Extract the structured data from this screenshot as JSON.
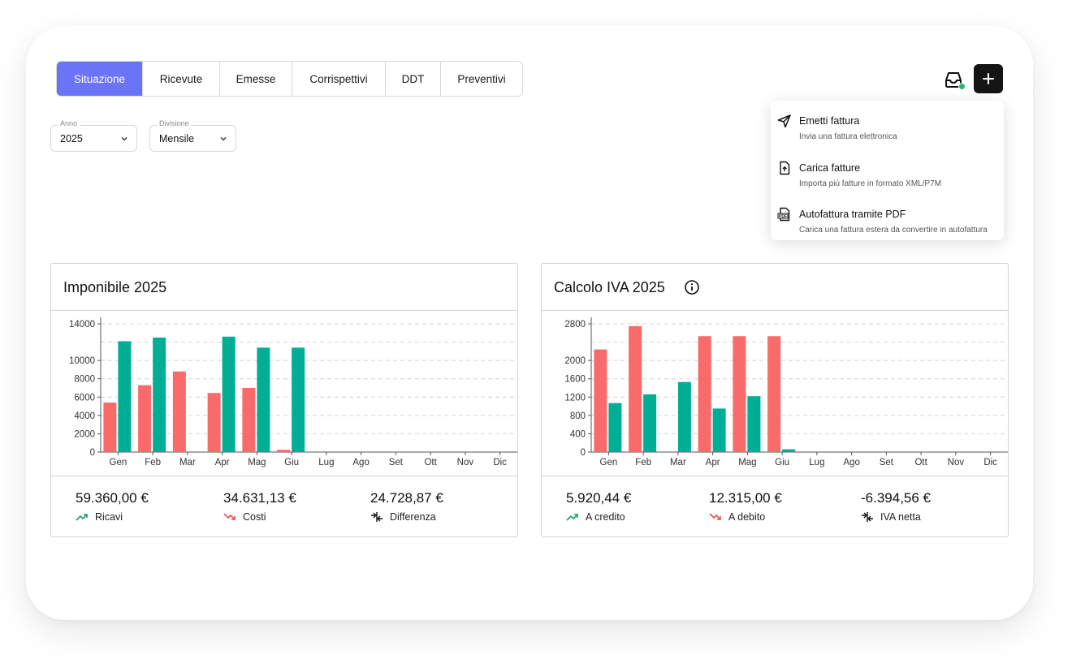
{
  "tabs": [
    {
      "label": "Situazione",
      "active": true
    },
    {
      "label": "Ricevute"
    },
    {
      "label": "Emesse"
    },
    {
      "label": "Corrispettivi"
    },
    {
      "label": "DDT"
    },
    {
      "label": "Preventivi"
    }
  ],
  "filters": {
    "year": {
      "label": "Anno",
      "value": "2025"
    },
    "division": {
      "label": "Divisione",
      "value": "Mensile"
    }
  },
  "actions": {
    "inbox_icon": "inbox-icon",
    "add_icon": "plus-icon",
    "status_color": "#22b66e"
  },
  "menu": {
    "items": [
      {
        "icon": "send-icon",
        "title": "Emetti fattura",
        "subtitle": "Invia una fattura elettronica"
      },
      {
        "icon": "file-upload-icon",
        "title": "Carica fatture",
        "subtitle": "Importa più fatture in formato XML/P7M"
      },
      {
        "icon": "pdf-file-icon",
        "title": "Autofattura tramite PDF",
        "subtitle": "Carica una fattura estera da convertire in autofattura"
      }
    ]
  },
  "colors": {
    "accent": "#6b73f6",
    "red": "#f96b6b",
    "teal": "#00ae96"
  },
  "panels": {
    "imponibile": {
      "title": "Imponibile 2025",
      "stats": [
        {
          "value": "59.360,00 €",
          "label": "Ricavi",
          "icon": "trending-up-icon"
        },
        {
          "value": "34.631,13 €",
          "label": "Costi",
          "icon": "trending-down-icon"
        },
        {
          "value": "24.728,87 €",
          "label": "Differenza",
          "icon": "compare-arrows-icon"
        }
      ]
    },
    "iva": {
      "title": "Calcolo IVA 2025",
      "info_icon": "info-icon",
      "stats": [
        {
          "value": "5.920,44 €",
          "label": "A credito",
          "icon": "trending-up-icon"
        },
        {
          "value": "12.315,00 €",
          "label": "A debito",
          "icon": "trending-down-icon"
        },
        {
          "value": "-6.394,56 €",
          "label": "IVA netta",
          "icon": "compare-arrows-icon"
        }
      ]
    }
  },
  "chart_data": [
    {
      "type": "bar",
      "title": "Imponibile 2025",
      "categories": [
        "Gen",
        "Feb",
        "Mar",
        "Apr",
        "Mag",
        "Giu",
        "Lug",
        "Ago",
        "Set",
        "Ott",
        "Nov",
        "Dic"
      ],
      "yticks": [
        "0",
        "2000",
        "4000",
        "6000",
        "8000",
        "10000",
        "14000"
      ],
      "ylim": [
        0,
        14000
      ],
      "grid": true,
      "series": [
        {
          "color": "#f96b6b",
          "values": [
            5400,
            7300,
            8800,
            6450,
            7000,
            250,
            0,
            0,
            0,
            0,
            0,
            0
          ]
        },
        {
          "color": "#00ae96",
          "values": [
            12100,
            12500,
            0,
            12600,
            11400,
            11400,
            0,
            0,
            0,
            0,
            0,
            0
          ]
        }
      ]
    },
    {
      "type": "bar",
      "title": "Calcolo IVA 2025",
      "categories": [
        "Gen",
        "Feb",
        "Mar",
        "Apr",
        "Mag",
        "Giu",
        "Lug",
        "Ago",
        "Set",
        "Ott",
        "Nov",
        "Dic"
      ],
      "yticks": [
        "0",
        "400",
        "800",
        "1200",
        "1600",
        "2000",
        "2800"
      ],
      "ylim": [
        0,
        2800
      ],
      "grid": true,
      "series": [
        {
          "color": "#f96b6b",
          "values": [
            2240,
            2750,
            0,
            2530,
            2530,
            2530,
            0,
            0,
            0,
            0,
            0,
            0
          ]
        },
        {
          "color": "#00ae96",
          "values": [
            1070,
            1260,
            1530,
            950,
            1220,
            60,
            0,
            0,
            0,
            0,
            0,
            0
          ]
        }
      ]
    }
  ]
}
